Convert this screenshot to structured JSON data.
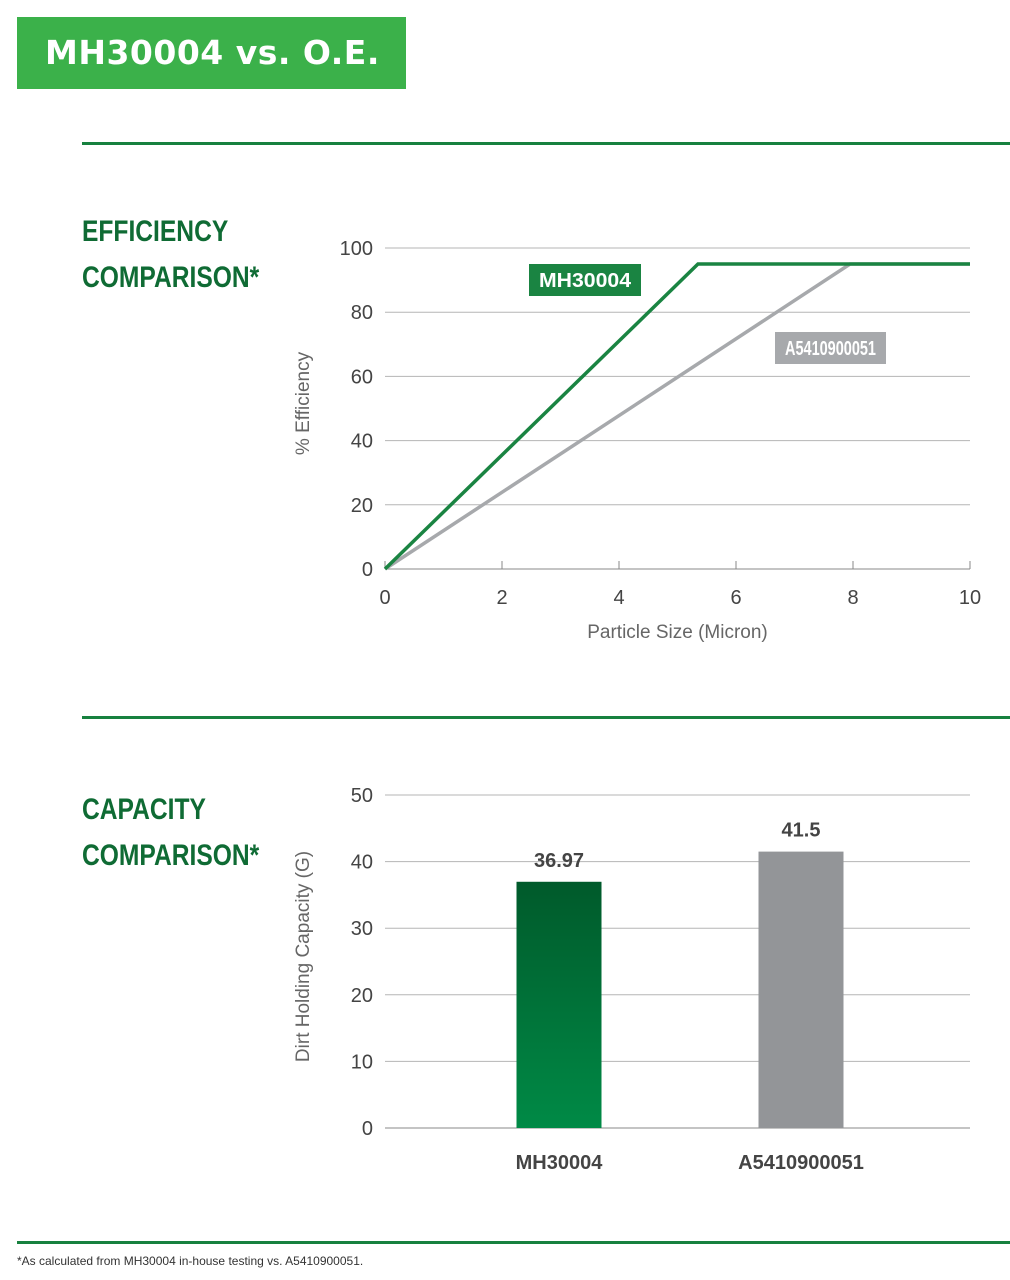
{
  "header": {
    "title": "MH30004 vs. O.E."
  },
  "efficiency": {
    "section_title_line1": "EFFICIENCY",
    "section_title_line2": "COMPARISON*"
  },
  "capacity": {
    "section_title_line1": "CAPACITY",
    "section_title_line2": "COMPARISON*"
  },
  "footnote": "*As calculated from MH30004 in-house testing vs. A5410900051.",
  "colors": {
    "brand_green": "#3bb14a",
    "dark_green": "#0f6b34",
    "line_green": "#1a8442",
    "gray": "#a7a9ac",
    "bar_gray": "#939598"
  },
  "chart_data": [
    {
      "type": "line",
      "title": "",
      "xlabel": "Particle Size (Micron)",
      "ylabel": "% Efficiency",
      "xlim": [
        0,
        10
      ],
      "ylim": [
        0,
        100
      ],
      "xticks": [
        0,
        2,
        4,
        6,
        8,
        10
      ],
      "yticks": [
        0,
        20,
        40,
        60,
        80,
        100
      ],
      "grid": "horizontal",
      "series": [
        {
          "name": "MH30004",
          "color": "#1a8442",
          "points": [
            [
              0,
              0
            ],
            [
              5.35,
              95
            ],
            [
              10,
              95
            ]
          ]
        },
        {
          "name": "A5410900051",
          "color": "#a7a9ac",
          "points": [
            [
              0,
              0
            ],
            [
              7.95,
              95
            ],
            [
              10,
              95
            ]
          ]
        }
      ]
    },
    {
      "type": "bar",
      "title": "",
      "xlabel": "",
      "ylabel": "Dirt Holding Capacity (G)",
      "ylim": [
        0,
        50
      ],
      "yticks": [
        0,
        10,
        20,
        30,
        40,
        50
      ],
      "grid": "horizontal",
      "categories": [
        "MH30004",
        "A5410900051"
      ],
      "values": [
        36.97,
        41.5
      ],
      "value_labels": [
        "36.97",
        "41.5"
      ],
      "colors": [
        "green-gradient",
        "#939598"
      ]
    }
  ]
}
